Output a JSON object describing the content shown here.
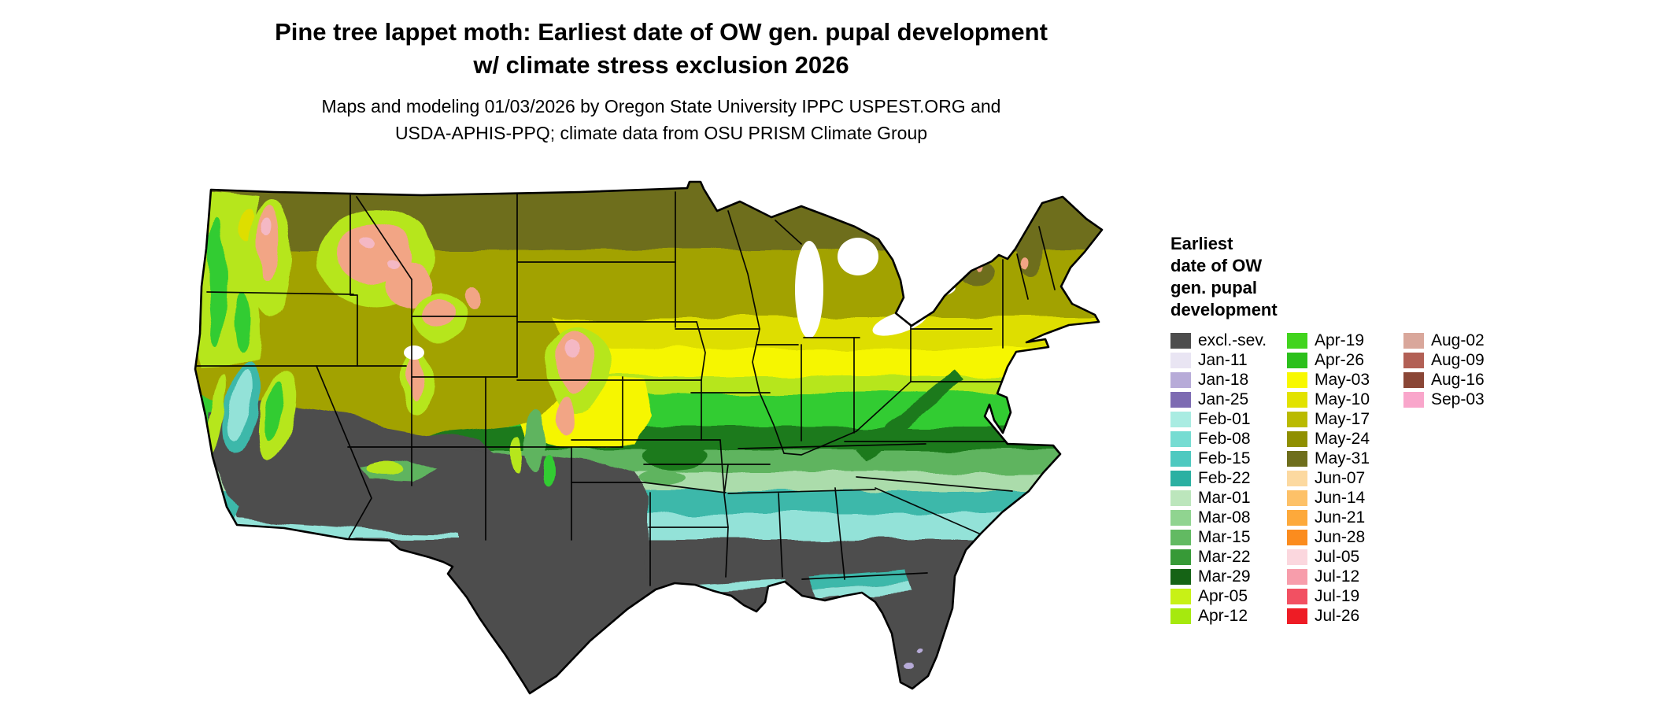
{
  "header": {
    "title_line1": "Pine tree lappet moth: Earliest date of OW gen. pupal development",
    "title_line2": "w/ climate stress exclusion 2026",
    "subtitle_line1": "Maps and modeling 01/03/2026 by Oregon State University IPPC USPEST.ORG and",
    "subtitle_line2": "USDA-APHIS-PPQ; climate data from OSU PRISM Climate Group"
  },
  "legend": {
    "title_lines": [
      "Earliest",
      "date of OW",
      "gen. pupal",
      "development"
    ],
    "columns": [
      {
        "entries": [
          {
            "label": "excl.-sev.",
            "color": "#4d4d4d"
          },
          {
            "label": "Jan-11",
            "color": "#e9e5f3"
          },
          {
            "label": "Jan-18",
            "color": "#b7abd8"
          },
          {
            "label": "Jan-25",
            "color": "#7d6bb2"
          },
          {
            "label": "Feb-01",
            "color": "#a9ece2"
          },
          {
            "label": "Feb-08",
            "color": "#76dcd2"
          },
          {
            "label": "Feb-15",
            "color": "#4ec9c0"
          },
          {
            "label": "Feb-22",
            "color": "#2bb0a2"
          },
          {
            "label": "Mar-01",
            "color": "#bce6bc"
          },
          {
            "label": "Mar-08",
            "color": "#90d490"
          },
          {
            "label": "Mar-15",
            "color": "#62ba62"
          },
          {
            "label": "Mar-22",
            "color": "#379a37"
          },
          {
            "label": "Mar-29",
            "color": "#156315"
          },
          {
            "label": "Apr-05",
            "color": "#c8f116"
          },
          {
            "label": "Apr-12",
            "color": "#a6e90e"
          }
        ]
      },
      {
        "entries": [
          {
            "label": "Apr-19",
            "color": "#42d41e"
          },
          {
            "label": "Apr-26",
            "color": "#2cc01c"
          },
          {
            "label": "May-03",
            "color": "#f8f800"
          },
          {
            "label": "May-10",
            "color": "#e2e200"
          },
          {
            "label": "May-17",
            "color": "#baba00"
          },
          {
            "label": "May-24",
            "color": "#8f8f00"
          },
          {
            "label": "May-31",
            "color": "#6e6e1c"
          },
          {
            "label": "Jun-07",
            "color": "#fcd9a0"
          },
          {
            "label": "Jun-14",
            "color": "#fdc168"
          },
          {
            "label": "Jun-21",
            "color": "#fda93b"
          },
          {
            "label": "Jun-28",
            "color": "#fb8c1e"
          },
          {
            "label": "Jul-05",
            "color": "#fbd7de"
          },
          {
            "label": "Jul-12",
            "color": "#f79dab"
          },
          {
            "label": "Jul-19",
            "color": "#f25062"
          },
          {
            "label": "Jul-26",
            "color": "#ee1c25"
          }
        ]
      },
      {
        "entries": [
          {
            "label": "Aug-02",
            "color": "#d9a79b"
          },
          {
            "label": "Aug-09",
            "color": "#b26055"
          },
          {
            "label": "Aug-16",
            "color": "#8a4636"
          },
          {
            "label": "Sep-03",
            "color": "#f9a6cb"
          }
        ]
      }
    ]
  },
  "map_colors": {
    "excluded": "#4d4d4d",
    "olive_dark": "#6e6e1c",
    "olive": "#a2a200",
    "yellow_dark": "#dede00",
    "yellow": "#f6f600",
    "chartreuse": "#b6e61d",
    "green_bright": "#32cc32",
    "green_mid": "#5fb45f",
    "green_pale": "#abdcab",
    "green_dark": "#1e7a1e",
    "teal": "#3cb8aa",
    "cyan_pale": "#93e2d8",
    "salmon": "#f2a585",
    "pink": "#f4b8c4",
    "peach": "#fdc98f",
    "lavender": "#b7abd8",
    "lake": "#ffffff",
    "outline": "#000000"
  }
}
